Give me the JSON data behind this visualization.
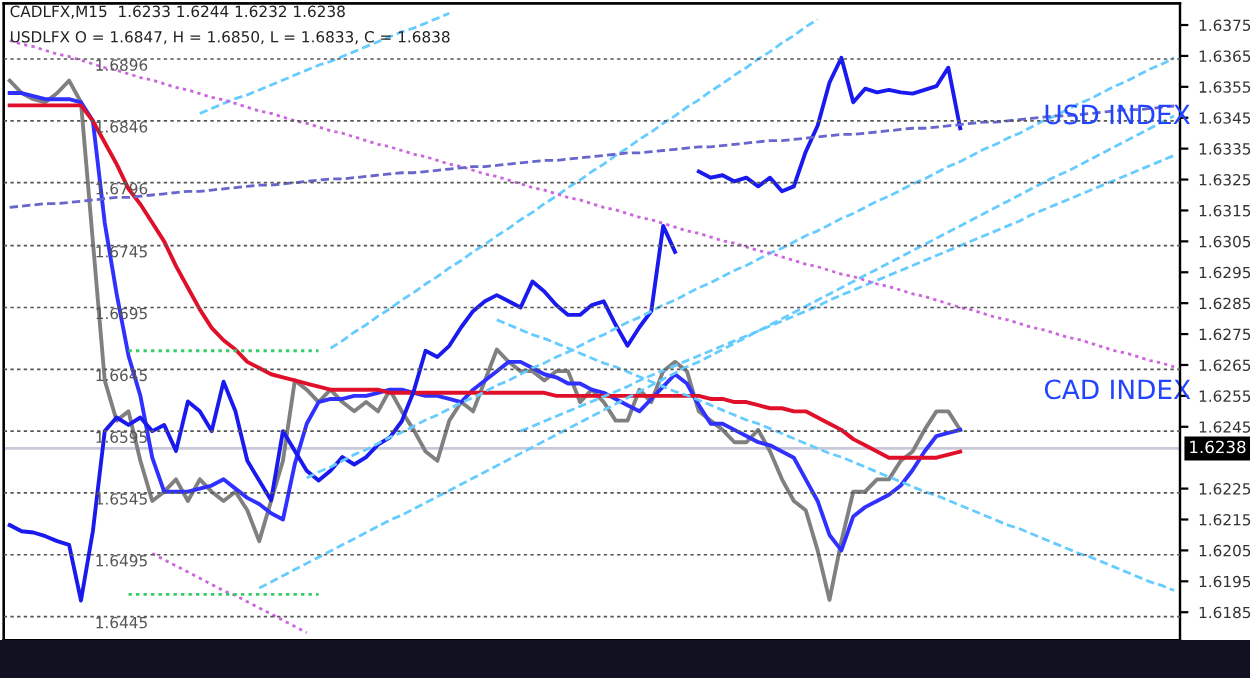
{
  "chart_data": {
    "type": "line",
    "annotations": [
      "CADLFX,M15  1.6233 1.6244 1.6232 1.6238",
      "USDLFX O = 1.6847, H = 1.6850, L = 1.6833, C = 1.6838"
    ],
    "categories": [
      null,
      null,
      null,
      null,
      null,
      null,
      null,
      null,
      null,
      null,
      null,
      null,
      null,
      null,
      null,
      null,
      null,
      null,
      null,
      null,
      null,
      null,
      null,
      null,
      null,
      null,
      null,
      null,
      null,
      null,
      null,
      null,
      null,
      null,
      null,
      null,
      null,
      null,
      null,
      null,
      null,
      null,
      null,
      null,
      null,
      null,
      null,
      null,
      null,
      null,
      null,
      null,
      null,
      null,
      null,
      null,
      null,
      null,
      null,
      null,
      null,
      null,
      null,
      null,
      null,
      null,
      null,
      null,
      null,
      null,
      null,
      null,
      null,
      null,
      null,
      null,
      null,
      null,
      null,
      null,
      null,
      null,
      null,
      null,
      null,
      null,
      null,
      null,
      null,
      null,
      null,
      null,
      null,
      null,
      null,
      null,
      null,
      null,
      null
    ],
    "series": [
      {
        "name": "CAD INDEX",
        "color": "#808080",
        "axis": "y2",
        "values": [
          1.6357,
          1.6353,
          1.6351,
          1.635,
          1.6353,
          1.6357,
          1.635,
          1.6305,
          1.626,
          1.6247,
          1.625,
          1.6234,
          1.6221,
          1.6224,
          1.6228,
          1.6221,
          1.6228,
          1.6224,
          1.6221,
          1.6224,
          1.6218,
          1.6208,
          1.6221,
          1.6234,
          1.626,
          1.6257,
          1.6253,
          1.6257,
          1.6253,
          1.625,
          1.6253,
          1.625,
          1.6257,
          1.625,
          1.6244,
          1.6237,
          1.6234,
          1.6247,
          1.6253,
          1.625,
          1.626,
          1.627,
          1.6266,
          1.6263,
          1.6263,
          1.626,
          1.6263,
          1.6263,
          1.6253,
          1.6257,
          1.6253,
          1.6247,
          1.6247,
          1.6257,
          1.6253,
          1.6263,
          1.6266,
          1.6263,
          1.625,
          1.6247,
          1.6244,
          1.624,
          1.624,
          1.6244,
          1.6237,
          1.6228,
          1.6221,
          1.6218,
          1.6205,
          1.6189,
          1.6208,
          1.6224,
          1.6224,
          1.6228,
          1.6228,
          1.6234,
          1.6237,
          1.6244,
          1.625,
          1.625,
          1.6244,
          null,
          null,
          null,
          null,
          null,
          null,
          null,
          null,
          null,
          null,
          null,
          null,
          null,
          null,
          null,
          null,
          null,
          null
        ]
      },
      {
        "color": "#3030ff",
        "axis": "y2",
        "values": [
          1.6353,
          1.6353,
          1.6352,
          1.6351,
          1.6351,
          1.6351,
          1.635,
          1.6344,
          1.6311,
          1.6288,
          1.6268,
          1.6255,
          1.6235,
          1.6224,
          1.6224,
          1.6224,
          1.6225,
          1.6226,
          1.6228,
          1.6225,
          1.6222,
          1.622,
          1.6217,
          1.6215,
          1.6233,
          1.6246,
          1.6253,
          1.6254,
          1.6254,
          1.6255,
          1.6255,
          1.6256,
          1.6257,
          1.6257,
          1.6256,
          1.6255,
          1.6255,
          1.6254,
          1.6253,
          1.6257,
          1.626,
          1.6263,
          1.6266,
          1.6266,
          1.6264,
          1.6262,
          1.6261,
          1.6259,
          1.6259,
          1.6257,
          1.6256,
          1.6254,
          1.6252,
          1.625,
          1.6254,
          1.6258,
          1.6262,
          1.6259,
          1.6252,
          1.6246,
          1.6246,
          1.6244,
          1.6242,
          1.624,
          1.6239,
          1.6237,
          1.6235,
          1.6228,
          1.6221,
          1.621,
          1.6205,
          1.6216,
          1.6219,
          1.6221,
          1.6223,
          1.6226,
          1.6231,
          1.6237,
          1.6242,
          1.6243,
          1.6244,
          null,
          null,
          null,
          null,
          null,
          null,
          null,
          null,
          null,
          null,
          null,
          null,
          null,
          null,
          null,
          null,
          null,
          null
        ]
      },
      {
        "color": "#e0102a",
        "axis": "y2",
        "values": [
          1.6349,
          1.6349,
          1.6349,
          1.6349,
          1.6349,
          1.6349,
          1.6349,
          1.6344,
          1.6337,
          1.633,
          1.6322,
          1.6317,
          1.6311,
          1.6305,
          1.6297,
          1.629,
          1.6283,
          1.6277,
          1.6273,
          1.627,
          1.6266,
          1.6264,
          1.6262,
          1.6261,
          1.626,
          1.6259,
          1.6258,
          1.6257,
          1.6257,
          1.6257,
          1.6257,
          1.6257,
          1.6256,
          1.6256,
          1.6256,
          1.6256,
          1.6256,
          1.6256,
          1.6256,
          1.6256,
          1.6256,
          1.6256,
          1.6256,
          1.6256,
          1.6256,
          1.6256,
          1.6255,
          1.6255,
          1.6255,
          1.6255,
          1.6255,
          1.6255,
          1.6255,
          1.6255,
          1.6255,
          1.6255,
          1.6255,
          1.6255,
          1.6255,
          1.6254,
          1.6254,
          1.6253,
          1.6253,
          1.6252,
          1.6251,
          1.6251,
          1.625,
          1.625,
          1.6248,
          1.6246,
          1.6244,
          1.6241,
          1.6239,
          1.6237,
          1.6235,
          1.6235,
          1.6235,
          1.6235,
          1.6235,
          1.6236,
          1.6237,
          null,
          null,
          null,
          null,
          null,
          null,
          null,
          null,
          null,
          null,
          null,
          null,
          null,
          null,
          null,
          null,
          null,
          null
        ]
      },
      {
        "name": "USD INDEX",
        "color": "#1a1aee",
        "values": [
          1.6519,
          1.6514,
          1.6513,
          1.651,
          1.6506,
          1.6503,
          1.6458,
          1.6514,
          1.6595,
          1.6606,
          1.66,
          1.6606,
          1.6595,
          1.66,
          1.6579,
          1.6619,
          1.6611,
          1.6595,
          1.6635,
          1.6611,
          1.6571,
          1.6555,
          1.6539,
          1.6595,
          1.6579,
          1.6563,
          1.6555,
          1.6563,
          1.6574,
          1.6568,
          1.6574,
          1.6584,
          1.659,
          1.6603,
          1.6627,
          1.666,
          1.6655,
          1.6664,
          1.6679,
          1.6692,
          1.67,
          1.6705,
          1.67,
          1.6695,
          1.6716,
          1.6708,
          1.6697,
          1.6689,
          1.6689,
          1.6697,
          1.67,
          1.6681,
          1.6664,
          1.6679,
          1.6692,
          1.6761,
          1.674,
          null,
          1.6805,
          1.68,
          1.6802,
          1.6797,
          1.68,
          1.6793,
          1.68,
          1.6789,
          1.6793,
          1.6821,
          1.6842,
          1.6877,
          1.6897,
          1.6861,
          1.6872,
          1.6869,
          1.6871,
          1.6869,
          1.6868,
          1.6871,
          1.6874,
          1.6889,
          1.684,
          null,
          null,
          null,
          null,
          null,
          null,
          null,
          null,
          null,
          null,
          null,
          null,
          null,
          null,
          null,
          null,
          null,
          null
        ]
      },
      {
        "color": "#66ccff",
        "line_style": "dashed",
        "values": [
          null,
          null,
          null,
          null,
          null,
          null,
          null,
          null,
          null,
          null,
          null,
          null,
          null,
          null,
          null,
          null,
          1.6852,
          1.6856,
          1.686,
          1.6864,
          1.6867,
          1.6871,
          1.6875,
          1.6879,
          1.6883,
          1.6887,
          1.6891,
          1.6894,
          1.6898,
          1.6902,
          1.6906,
          1.691,
          1.6914,
          1.6918,
          1.6921,
          1.6925,
          1.6929,
          1.6933,
          null,
          null,
          null,
          null,
          null,
          null,
          null,
          null,
          null,
          null,
          null,
          null,
          null,
          null,
          null,
          null,
          null,
          null,
          null,
          null,
          null,
          null,
          null,
          null,
          null,
          null,
          null,
          null,
          null,
          null,
          null,
          null,
          null,
          null,
          null,
          null,
          null,
          null,
          null,
          null,
          null,
          null,
          null,
          null,
          null,
          null,
          null,
          null,
          null,
          null,
          null,
          null,
          null,
          null,
          null,
          null,
          null,
          null,
          null,
          null,
          null
        ]
      },
      {
        "color": "#66ccff",
        "line_style": "dashed",
        "values": [
          null,
          null,
          null,
          null,
          null,
          null,
          null,
          null,
          null,
          null,
          null,
          null,
          null,
          null,
          null,
          null,
          null,
          null,
          null,
          null,
          null,
          null,
          null,
          null,
          null,
          null,
          null,
          1.6662,
          1.6668,
          1.6675,
          1.6681,
          1.6688,
          1.6694,
          1.6701,
          1.6707,
          1.6714,
          1.672,
          1.6727,
          1.6733,
          1.674,
          1.6746,
          1.6753,
          1.6759,
          1.6766,
          1.6772,
          1.6779,
          1.6785,
          1.6792,
          1.6798,
          1.6805,
          1.6811,
          1.6818,
          1.6824,
          1.6831,
          1.6837,
          1.6844,
          1.685,
          1.6857,
          1.6863,
          1.687,
          1.6876,
          1.6883,
          1.6889,
          1.6896,
          1.6902,
          1.6909,
          1.6915,
          1.6922,
          1.6928,
          null,
          null,
          null,
          null,
          null,
          null,
          null,
          null,
          null,
          null,
          null,
          null,
          null,
          null,
          null,
          null,
          null,
          null,
          null,
          null,
          null,
          null,
          null,
          null,
          null,
          null,
          null,
          null,
          null,
          null
        ]
      },
      {
        "color": "#66ccff",
        "line_style": "dashed",
        "values": [
          null,
          null,
          null,
          null,
          null,
          null,
          null,
          null,
          null,
          null,
          null,
          null,
          null,
          null,
          null,
          null,
          null,
          null,
          null,
          null,
          null,
          null,
          null,
          null,
          null,
          1.6557,
          1.6562,
          1.6566,
          1.6571,
          1.6576,
          1.658,
          1.6585,
          1.659,
          1.6594,
          1.6599,
          1.6604,
          1.6608,
          1.6613,
          1.6618,
          1.6622,
          1.6627,
          1.6632,
          1.6636,
          1.6641,
          1.6646,
          1.665,
          1.6655,
          1.6659,
          1.6664,
          1.6669,
          1.6673,
          1.6678,
          1.6683,
          1.6687,
          1.6692,
          1.6697,
          1.6701,
          1.6706,
          1.6711,
          1.6715,
          1.672,
          1.6725,
          1.6729,
          1.6734,
          1.6739,
          1.6743,
          1.6748,
          1.6753,
          1.6757,
          1.6762,
          1.6767,
          1.6771,
          1.6776,
          1.6781,
          1.6785,
          1.679,
          1.6795,
          1.6799,
          1.6804,
          1.6809,
          1.6813,
          1.6818,
          1.6823,
          1.6827,
          1.6832,
          1.6836,
          1.6841,
          1.6846,
          1.685,
          1.6855,
          1.686,
          1.6864,
          1.6869,
          1.6874,
          1.6878,
          1.6883,
          1.6888,
          1.6892,
          1.6897
        ]
      },
      {
        "color": "#66ccff",
        "line_style": "dashed",
        "values": [
          null,
          null,
          null,
          null,
          null,
          null,
          null,
          null,
          null,
          null,
          null,
          null,
          null,
          null,
          null,
          null,
          null,
          null,
          null,
          null,
          null,
          1.6468,
          1.6473,
          1.6478,
          1.6483,
          1.6488,
          1.6493,
          1.6498,
          1.6503,
          1.6508,
          1.6513,
          1.6518,
          1.6523,
          1.6527,
          1.6532,
          1.6537,
          1.6542,
          1.6547,
          1.6552,
          1.6557,
          1.6562,
          1.6567,
          1.6572,
          1.6577,
          1.6582,
          1.6587,
          1.6592,
          1.6597,
          1.6602,
          1.6607,
          1.6612,
          1.6617,
          1.6622,
          1.6627,
          1.6632,
          1.6637,
          1.6642,
          1.6647,
          1.6651,
          1.6656,
          1.6661,
          1.6666,
          1.6671,
          1.6676,
          1.6681,
          1.6686,
          1.6691,
          1.6696,
          1.6701,
          1.6706,
          1.6711,
          1.6716,
          1.6721,
          1.6726,
          1.6731,
          1.6736,
          1.6741,
          1.6746,
          1.6751,
          1.6756,
          1.6761,
          1.6766,
          1.6771,
          1.6776,
          1.6781,
          1.6786,
          1.6791,
          1.6796,
          1.6801,
          1.6805,
          1.681,
          1.6815,
          1.682,
          1.6825,
          1.683,
          1.6835,
          1.684,
          1.6845,
          1.685
        ]
      },
      {
        "color": "#66ccff",
        "line_style": "dashed",
        "values": [
          null,
          null,
          null,
          null,
          null,
          null,
          null,
          null,
          null,
          null,
          null,
          null,
          null,
          null,
          null,
          null,
          null,
          null,
          null,
          null,
          null,
          null,
          null,
          null,
          null,
          null,
          null,
          null,
          null,
          null,
          null,
          null,
          null,
          null,
          null,
          null,
          null,
          null,
          null,
          null,
          null,
          null,
          null,
          1.6595,
          1.6599,
          1.6603,
          1.6607,
          1.6611,
          1.6615,
          1.6619,
          1.6623,
          1.6627,
          1.6631,
          1.6636,
          1.664,
          1.6644,
          1.6648,
          1.6652,
          1.6656,
          1.666,
          1.6664,
          1.6668,
          1.6672,
          1.6676,
          1.668,
          1.6684,
          1.6688,
          1.6692,
          1.6696,
          1.6701,
          1.6705,
          1.6709,
          1.6713,
          1.6717,
          1.6721,
          1.6725,
          1.6729,
          1.6733,
          1.6737,
          1.6741,
          1.6745,
          1.6749,
          1.6753,
          1.6757,
          1.6761,
          1.6765,
          1.677,
          1.6774,
          1.6778,
          1.6782,
          1.6786,
          1.679,
          1.6794,
          1.6798,
          1.6802,
          1.6806,
          1.681,
          1.6814,
          1.6818
        ]
      },
      {
        "color": "#66ccff",
        "line_style": "dashed",
        "values": [
          null,
          null,
          null,
          null,
          null,
          null,
          null,
          null,
          null,
          null,
          null,
          null,
          null,
          null,
          null,
          null,
          null,
          null,
          null,
          null,
          null,
          null,
          null,
          null,
          null,
          null,
          null,
          null,
          null,
          null,
          null,
          null,
          null,
          null,
          null,
          null,
          null,
          null,
          null,
          null,
          null,
          1.6685,
          1.6681,
          1.6677,
          1.6673,
          1.667,
          1.6666,
          1.6662,
          1.6658,
          1.6654,
          1.665,
          1.6647,
          1.6643,
          1.6639,
          1.6635,
          1.6631,
          1.6627,
          1.6624,
          1.662,
          1.6616,
          1.6612,
          1.6608,
          1.6604,
          1.6601,
          1.6597,
          1.6593,
          1.6589,
          1.6585,
          1.6581,
          1.6577,
          1.6574,
          1.657,
          1.6566,
          1.6562,
          1.6558,
          1.6554,
          1.655,
          1.6546,
          1.6543,
          1.6539,
          1.6535,
          1.6531,
          1.6527,
          1.6523,
          1.6519,
          1.6516,
          1.6512,
          1.6508,
          1.6504,
          1.65,
          1.6496,
          1.6493,
          1.6489,
          1.6485,
          1.6481,
          1.6477,
          1.6473,
          1.647,
          1.6466
        ]
      },
      {
        "color": "#cc66dd",
        "line_style": "dotted",
        "values": [
          1.6911,
          1.6908,
          1.6906,
          1.6903,
          1.69,
          1.6898,
          1.6895,
          1.6892,
          1.6889,
          1.6887,
          1.6884,
          1.6881,
          1.6879,
          1.6876,
          1.6873,
          1.6871,
          1.6868,
          1.6865,
          1.6863,
          1.686,
          1.6857,
          1.6854,
          1.6852,
          1.6849,
          1.6846,
          1.6844,
          1.6841,
          1.6838,
          1.6836,
          1.6833,
          1.683,
          1.6827,
          1.6825,
          1.6822,
          1.6819,
          1.6817,
          1.6814,
          1.6811,
          1.6809,
          1.6806,
          1.6803,
          1.6801,
          1.6798,
          1.6795,
          1.6792,
          1.679,
          1.6787,
          1.6784,
          1.6782,
          1.6779,
          1.6776,
          1.6774,
          1.6771,
          1.6768,
          1.6766,
          1.6763,
          1.676,
          1.6757,
          1.6755,
          1.6752,
          1.6749,
          1.6747,
          1.6744,
          1.6741,
          1.6739,
          1.6736,
          1.6733,
          1.673,
          1.6728,
          1.6725,
          1.6722,
          1.672,
          1.6717,
          1.6714,
          1.6712,
          1.6709,
          1.6706,
          1.6704,
          1.6701,
          1.6698,
          1.6695,
          1.6693,
          1.669,
          1.6687,
          1.6685,
          1.6682,
          1.6679,
          1.6677,
          1.6674,
          1.6671,
          1.6669,
          1.6666,
          1.6663,
          1.666,
          1.6658,
          1.6655,
          1.6652,
          1.665,
          1.6647
        ]
      },
      {
        "color": "#cc66dd",
        "line_style": "dotted",
        "values": [
          null,
          null,
          null,
          null,
          null,
          null,
          null,
          null,
          null,
          null,
          null,
          null,
          1.6496,
          1.6491,
          1.6486,
          1.6481,
          1.6476,
          1.6471,
          1.6466,
          1.6462,
          1.6457,
          1.6452,
          1.6447,
          1.6442,
          1.6437,
          1.6432,
          null,
          null,
          null,
          null,
          null,
          null,
          null,
          null,
          null,
          null,
          null,
          null,
          null,
          null,
          null,
          null,
          null,
          null,
          null,
          null,
          null,
          null,
          null,
          null,
          null,
          null,
          null,
          null,
          null,
          null,
          null,
          null,
          null,
          null,
          null,
          null,
          null,
          null,
          null,
          null,
          null,
          null,
          null,
          null,
          null,
          null,
          null,
          null,
          null,
          null,
          null,
          null,
          null,
          null,
          null,
          null,
          null,
          null,
          null,
          null,
          null,
          null,
          null,
          null,
          null,
          null,
          null,
          null,
          null,
          null,
          null,
          null,
          null
        ]
      },
      {
        "color": "#6666cc",
        "line_style": "dashed",
        "values": [
          1.6776,
          1.6777,
          1.6778,
          1.6779,
          1.6779,
          1.678,
          1.6781,
          1.6782,
          1.6783,
          1.6784,
          1.6784,
          1.6785,
          1.6786,
          1.6787,
          1.6788,
          1.6789,
          1.6789,
          1.679,
          1.6791,
          1.6792,
          1.6793,
          1.6794,
          1.6794,
          1.6795,
          1.6796,
          1.6797,
          1.6798,
          1.6799,
          1.6799,
          1.68,
          1.6801,
          1.6802,
          1.6803,
          1.6804,
          1.6804,
          1.6805,
          1.6806,
          1.6807,
          1.6808,
          1.6809,
          1.6809,
          1.681,
          1.6811,
          1.6812,
          1.6813,
          1.6814,
          1.6814,
          1.6815,
          1.6816,
          1.6817,
          1.6818,
          1.6819,
          1.682,
          1.682,
          1.6821,
          1.6822,
          1.6823,
          1.6824,
          1.6825,
          1.6825,
          1.6826,
          1.6827,
          1.6828,
          1.6829,
          1.683,
          1.683,
          1.6831,
          1.6832,
          1.6833,
          1.6834,
          1.6835,
          1.6835,
          1.6836,
          1.6837,
          1.6838,
          1.6839,
          1.684,
          1.684,
          1.6841,
          1.6842,
          1.6843,
          1.6844,
          1.6845,
          1.6845,
          1.6846,
          1.6847,
          1.6848,
          1.6849,
          1.685,
          1.685,
          1.6851,
          1.6852,
          1.6853,
          1.6854,
          1.6855,
          1.6855,
          1.6856,
          1.6857,
          1.6858
        ]
      },
      {
        "color": "#33cc66",
        "line_style": "dotted",
        "values": [
          null,
          null,
          null,
          null,
          null,
          null,
          null,
          null,
          null,
          null,
          1.666,
          1.666,
          1.666,
          1.666,
          1.666,
          1.666,
          1.666,
          1.666,
          1.666,
          1.666,
          1.666,
          1.666,
          1.666,
          1.666,
          1.666,
          1.666,
          1.666,
          null,
          null,
          null,
          null,
          null,
          null,
          null,
          null,
          null,
          null,
          null,
          null,
          null,
          null,
          null,
          null,
          null,
          null,
          null,
          null,
          null,
          null,
          null,
          null,
          null,
          null,
          null,
          null,
          null,
          null,
          null,
          null,
          null,
          null,
          null,
          null,
          null,
          null,
          null,
          null,
          null,
          null,
          null,
          null,
          null,
          null,
          null,
          null,
          null,
          null,
          null,
          null,
          null,
          null,
          null,
          null,
          null,
          null,
          null,
          null,
          null,
          null,
          null,
          null,
          null,
          null,
          null,
          null,
          null,
          null,
          null,
          null
        ]
      },
      {
        "color": "#33cc66",
        "line_style": "dotted",
        "values": [
          null,
          null,
          null,
          null,
          null,
          null,
          null,
          null,
          null,
          null,
          1.6463,
          1.6463,
          1.6463,
          1.6463,
          1.6463,
          1.6463,
          1.6463,
          1.6463,
          1.6463,
          1.6463,
          1.6463,
          1.6463,
          1.6463,
          1.6463,
          1.6463,
          1.6463,
          1.6463,
          null,
          null,
          null,
          null,
          null,
          null,
          null,
          null,
          null,
          null,
          null,
          null,
          null,
          null,
          null,
          null,
          null,
          null,
          null,
          null,
          null,
          null,
          null,
          null,
          null,
          null,
          null,
          null,
          null,
          null,
          null,
          null,
          null,
          null,
          null,
          null,
          null,
          null,
          null,
          null,
          null,
          null,
          null,
          null,
          null,
          null,
          null,
          null,
          null,
          null,
          null,
          null,
          null,
          null,
          null,
          null,
          null,
          null,
          null,
          null,
          null,
          null,
          null,
          null,
          null,
          null,
          null,
          null,
          null,
          null,
          null,
          null
        ]
      }
    ],
    "ylim": [
      1.6426,
      1.6941
    ],
    "yticks": [
      1.6445,
      1.6495,
      1.6545,
      1.6595,
      1.6645,
      1.6695,
      1.6745,
      1.6796,
      1.6846,
      1.6896
    ],
    "y2lim": [
      1.6176,
      1.6382
    ],
    "y2ticks": [
      1.6185,
      1.6195,
      1.6205,
      1.6215,
      1.6225,
      1.6245,
      1.6255,
      1.6265,
      1.6275,
      1.6285,
      1.6295,
      1.6305,
      1.6315,
      1.6325,
      1.6335,
      1.6345,
      1.6355,
      1.6365,
      1.6375
    ],
    "ref_lines": [
      {
        "axis": "y2",
        "value": 1.6238,
        "label": "1.6238",
        "color": "#c8c8d8"
      }
    ],
    "grid": "y"
  }
}
